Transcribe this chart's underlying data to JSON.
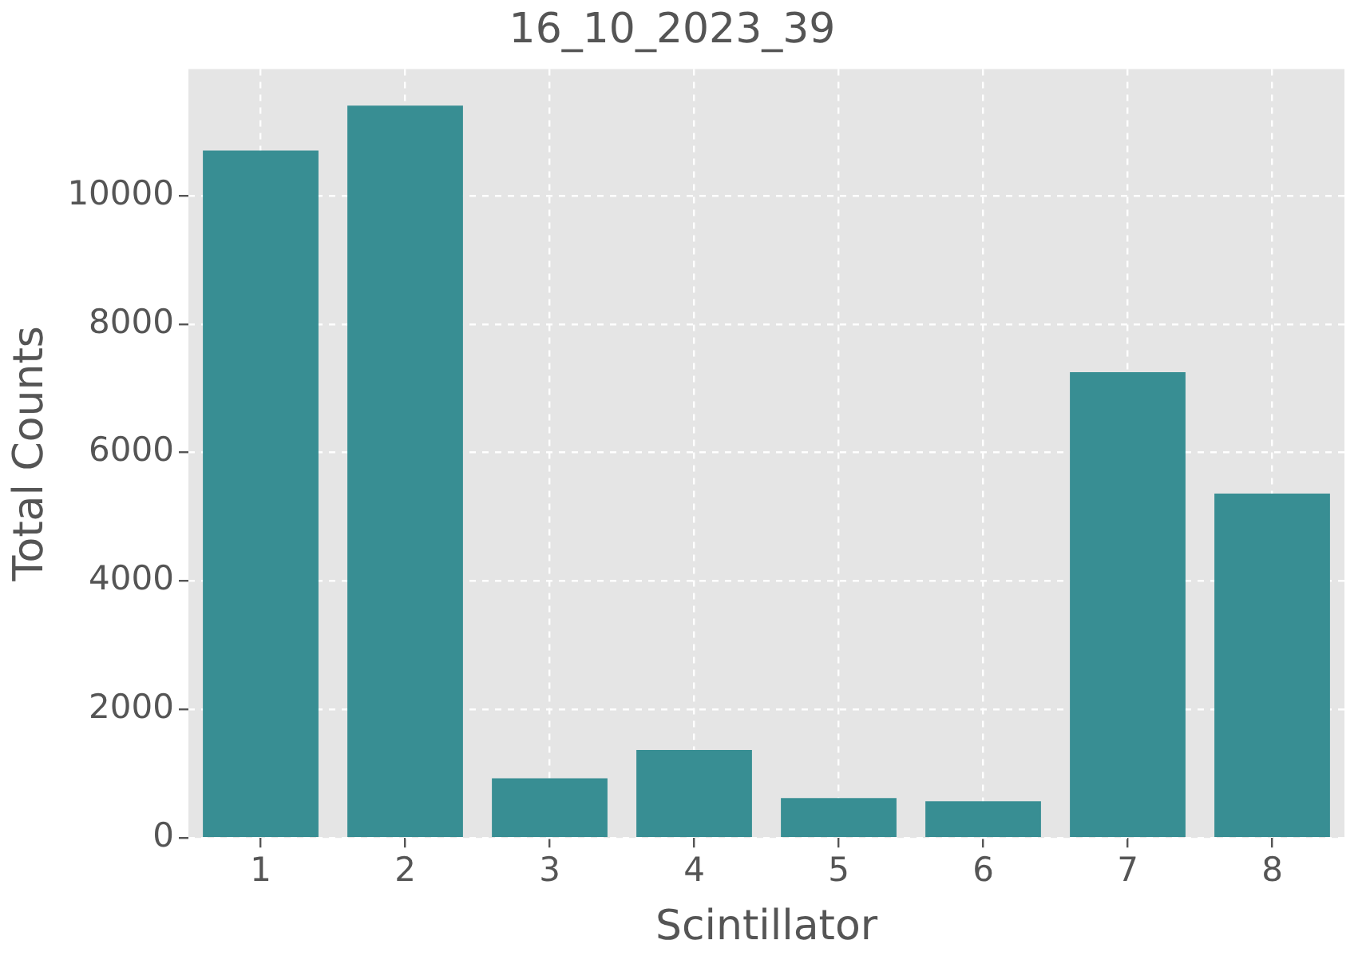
{
  "chart_data": {
    "type": "bar",
    "title": "16_10_2023_39",
    "xlabel": "Scintillator",
    "ylabel": "Total Counts",
    "categories": [
      "1",
      "2",
      "3",
      "4",
      "5",
      "6",
      "7",
      "8"
    ],
    "values": [
      10700,
      11400,
      930,
      1370,
      620,
      570,
      7250,
      5360
    ],
    "color": "#388e93",
    "ylim": [
      0,
      11970
    ],
    "yticks": [
      0,
      2000,
      4000,
      6000,
      8000,
      10000
    ],
    "grid": true
  }
}
